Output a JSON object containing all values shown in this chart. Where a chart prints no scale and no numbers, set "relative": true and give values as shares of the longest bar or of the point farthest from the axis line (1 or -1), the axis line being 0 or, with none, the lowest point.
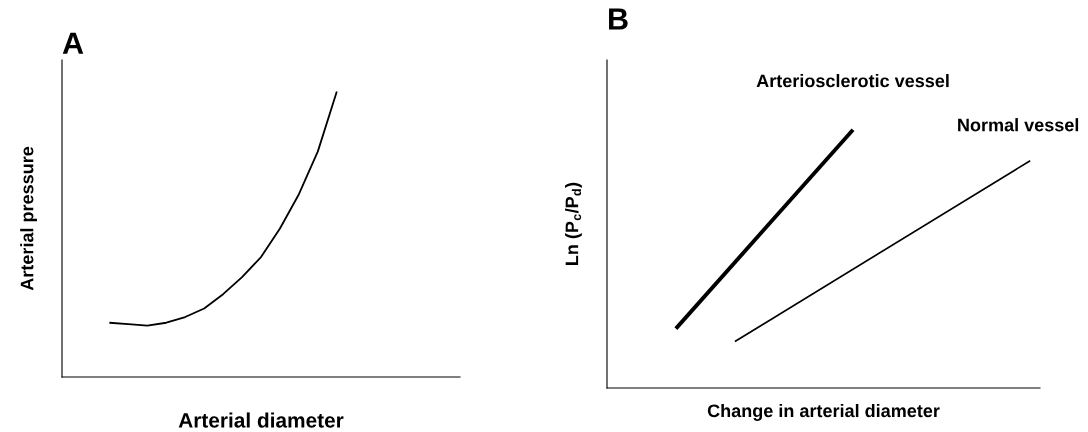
{
  "chart_data": [
    {
      "type": "line",
      "title": "A",
      "xlabel": "Arterial diameter",
      "ylabel": "Arterial pressure",
      "relative": true,
      "grid": false,
      "legend": false,
      "marker": "none",
      "categories": [
        null,
        null,
        null,
        null,
        null,
        null,
        null,
        null,
        null,
        null,
        null,
        null,
        null,
        null,
        null,
        null,
        null,
        null,
        null,
        null,
        null
      ],
      "series": [
        {
          "color": "#000000",
          "values": [
            null,
            null,
            0.19,
            0.185,
            0.18,
            0.19,
            0.21,
            0.24,
            0.29,
            0.35,
            0.42,
            0.52,
            0.64,
            0.79,
            1.0,
            null,
            null,
            null,
            null,
            null,
            null
          ]
        }
      ]
    },
    {
      "type": "line",
      "title": "B",
      "xlabel": "Change in arterial diameter",
      "ylabel": "Ln (P$_{c}$/P$_{d}$)",
      "relative": true,
      "grid": false,
      "legend": false,
      "marker": "none",
      "categories": [
        null,
        null,
        null,
        null,
        null,
        null,
        null,
        null,
        null,
        null,
        null,
        null,
        null,
        null,
        null,
        null,
        null,
        null,
        null,
        null,
        null,
        null
      ],
      "series": [
        {
          "name": "Arteriosclerotic vessel",
          "color": "#000000",
          "values": [
            null,
            null,
            null,
            0.23,
            null,
            null,
            null,
            null,
            null,
            null,
            null,
            null,
            1.0,
            null,
            null,
            null,
            null,
            null,
            null,
            null,
            null,
            null
          ]
        },
        {
          "name": "Normal vessel",
          "color": "#000000",
          "values": [
            null,
            null,
            null,
            null,
            null,
            null,
            0.18,
            null,
            null,
            null,
            null,
            null,
            null,
            null,
            null,
            null,
            null,
            null,
            null,
            null,
            null,
            0.88
          ]
        }
      ]
    }
  ]
}
